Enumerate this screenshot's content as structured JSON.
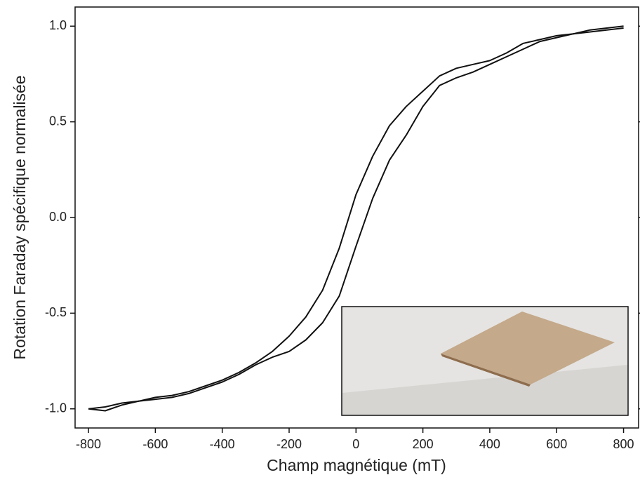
{
  "chart_data": {
    "type": "line",
    "xlabel": "Champ magnétique (mT)",
    "ylabel": "Rotation Faraday spécifique normalisée",
    "x": [
      -800,
      -750,
      -700,
      -650,
      -600,
      -550,
      -500,
      -450,
      -400,
      -350,
      -300,
      -250,
      -200,
      -150,
      -100,
      -50,
      0,
      50,
      100,
      150,
      200,
      250,
      300,
      350,
      400,
      450,
      500,
      550,
      600,
      650,
      700,
      750,
      800
    ],
    "series": [
      {
        "color": "#111111",
        "values": [
          -1.0,
          -0.99,
          -0.97,
          -0.96,
          -0.94,
          -0.93,
          -0.91,
          -0.88,
          -0.85,
          -0.81,
          -0.76,
          -0.7,
          -0.62,
          -0.52,
          -0.38,
          -0.16,
          0.12,
          0.32,
          0.48,
          0.58,
          0.66,
          0.74,
          0.78,
          0.8,
          0.82,
          0.86,
          0.91,
          0.93,
          0.95,
          0.96,
          0.97,
          0.98,
          0.99
        ]
      },
      {
        "color": "#111111",
        "values": [
          -1.0,
          -1.01,
          -0.98,
          -0.96,
          -0.95,
          -0.94,
          -0.92,
          -0.89,
          -0.86,
          -0.82,
          -0.77,
          -0.73,
          -0.7,
          -0.64,
          -0.55,
          -0.41,
          -0.15,
          0.1,
          0.3,
          0.43,
          0.58,
          0.69,
          0.73,
          0.76,
          0.8,
          0.84,
          0.88,
          0.92,
          0.94,
          0.96,
          0.98,
          0.99,
          1.0
        ]
      }
    ],
    "xlim": [
      -840,
      845
    ],
    "ylim": [
      -1.1,
      1.1
    ],
    "xticks": [
      -800,
      -600,
      -400,
      -200,
      0,
      200,
      400,
      600,
      800
    ],
    "yticks": [
      {
        "value": -1,
        "label": "-1.0"
      },
      {
        "value": -0.5,
        "label": "-0.5"
      },
      {
        "value": 0,
        "label": "0.0"
      },
      {
        "value": 0.5,
        "label": "0.5"
      },
      {
        "value": 1,
        "label": "1.0"
      }
    ]
  }
}
